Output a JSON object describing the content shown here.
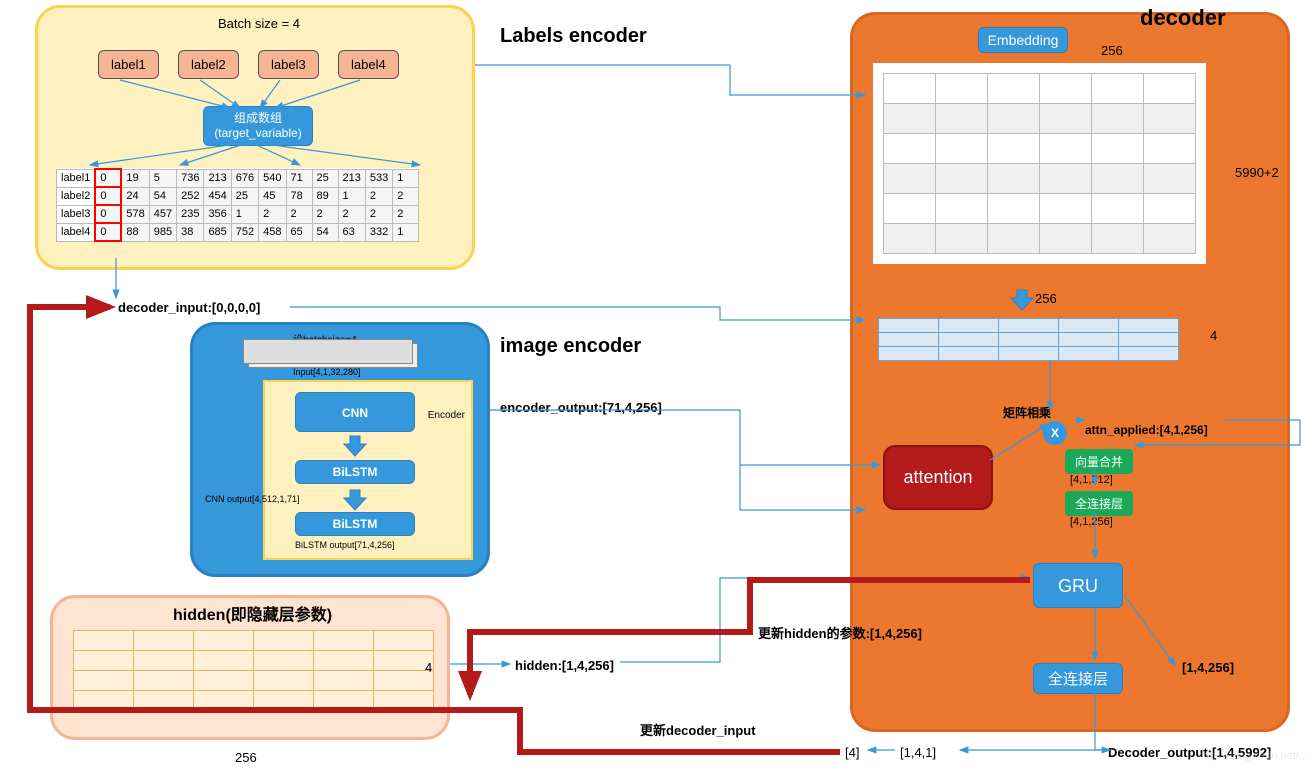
{
  "titles": {
    "labels_encoder": "Labels encoder",
    "image_encoder": "image encoder",
    "decoder": "decoder"
  },
  "labels_panel": {
    "bg": "#fff0bf",
    "border": "#ffd24d",
    "batch_text": "Batch size = 4",
    "labels": [
      "label1",
      "label2",
      "label3",
      "label4"
    ],
    "compose_box": {
      "line1": "组成数组",
      "line2": "(target_variable)"
    },
    "table": {
      "row_headers": [
        "label1",
        "label2",
        "label3",
        "label4"
      ],
      "highlight_col_index": 0,
      "rows": [
        [
          0,
          19,
          5,
          736,
          213,
          676,
          540,
          71,
          25,
          213,
          533,
          1
        ],
        [
          0,
          24,
          54,
          252,
          454,
          25,
          45,
          78,
          89,
          1,
          2,
          2
        ],
        [
          0,
          578,
          457,
          235,
          356,
          1,
          2,
          2,
          2,
          2,
          2,
          2
        ],
        [
          0,
          88,
          985,
          38,
          685,
          752,
          458,
          65,
          54,
          63,
          332,
          1
        ]
      ]
    }
  },
  "decoder_input_text": "decoder_input:[0,0,0,0]",
  "encoder_output_text": "encoder_output:[71,4,256]",
  "hidden_text": "hidden:[1,4,256]",
  "image_encoder": {
    "batch_text": "设batchsize=4",
    "sample_text": "此在战术上应大胆、勇",
    "input_shape": "Input[4,1,32,280]",
    "cnn": "CNN",
    "block_label": "Encoder",
    "bilstm1": "BiLSTM",
    "bilstm2": "BiLSTM",
    "cnn_out": "CNN output[4,512,1,71]",
    "bilstm_out": "BiLSTM output[71,4,256]"
  },
  "hidden_panel": {
    "title": "hidden(即隐藏层参数)",
    "rows": 4,
    "cols": 6,
    "dim_h": "4",
    "dim_w": "256"
  },
  "decoder": {
    "embedding": "Embedding",
    "dim_top": "256",
    "dim_right": "5990+2",
    "dim_below_grid": "256",
    "output_rows_label": "4",
    "matmul_label": "矩阵相乘",
    "attn_applied": "attn_applied:[4,1,256]",
    "concat": "向量合并",
    "concat_shape": "[4,1,512]",
    "fc1": "全连接层",
    "fc1_out": "[4,1,256]",
    "attention": "attention",
    "gru": "GRU",
    "gru_right": "[1,4,256]",
    "fc2": "全连接层",
    "decoder_output": "Decoder_output:[1,4,5992]"
  },
  "feedback": {
    "update_hidden": "更新hidden的参数:[1,4,256]",
    "update_decoder_input": "更新decoder_input",
    "shape_141": "[1,4,1]",
    "shape_4": "[4]"
  },
  "colors": {
    "blue": "#3498db",
    "yellow": "#fff0bf",
    "orange": "#ec7830",
    "peach": "#f5b494",
    "red_line": "#b51a1a",
    "green": "#1aa859",
    "red_box": "#b51a1a"
  }
}
